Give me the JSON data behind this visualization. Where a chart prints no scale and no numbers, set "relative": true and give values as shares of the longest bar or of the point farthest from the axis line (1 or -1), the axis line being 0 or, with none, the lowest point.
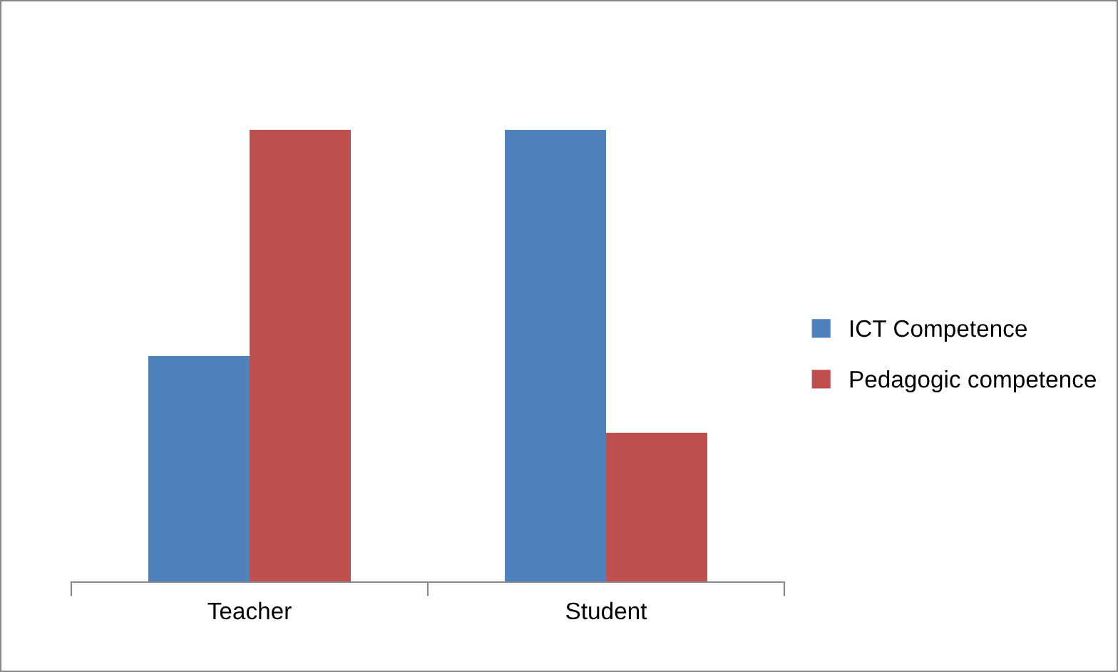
{
  "chart_data": {
    "type": "bar",
    "relative": true,
    "categories": [
      "Teacher",
      "Student"
    ],
    "series": [
      {
        "name": "ICT Competence",
        "color": "#4f81bd",
        "values": [
          0.5,
          1
        ]
      },
      {
        "name": "Pedagogic competence",
        "color": "#c0504d",
        "values": [
          1,
          0.33
        ]
      }
    ],
    "legend": "right",
    "grid": false
  }
}
